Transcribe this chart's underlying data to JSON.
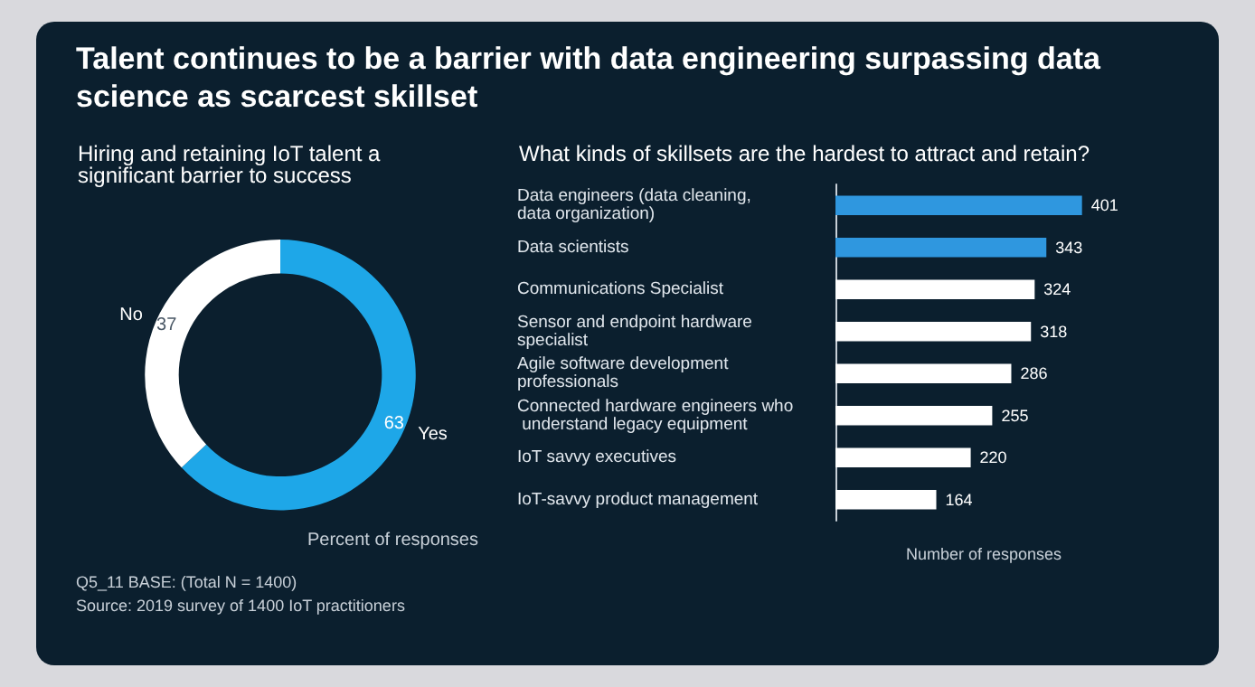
{
  "chart_data": [
    {
      "type": "donut",
      "title": "Talent continues to be a barrier with data engineering surpassing data science as scarcest skillset",
      "subtitle": "Hiring and retaining IoT talent a significant barrier to success",
      "categories": [
        "Yes",
        "No"
      ],
      "values": [
        63,
        37
      ],
      "colors": [
        "#1ea7e8",
        "#ffffff"
      ],
      "xlabel": "Percent of responses",
      "data_labels": true,
      "legend": false,
      "annotations": [
        "Q5_11 BASE: (Total N = 1400)",
        "Source: 2019 survey of 1400 IoT practitioners"
      ]
    },
    {
      "type": "bar",
      "orientation": "horizontal",
      "title": "What kinds of skillsets are the hardest to attract and retain?",
      "categories": [
        "Data engineers (data cleaning, data organization)",
        "Data scientists",
        "Communications Specialist",
        "Sensor and endpoint hardware specialist",
        "Agile software development professionals",
        "Connected hardware engineers who understand legacy equipment",
        "IoT savvy executives",
        "IoT-savvy product management"
      ],
      "values": [
        401,
        343,
        324,
        318,
        286,
        255,
        220,
        164
      ],
      "colors": [
        "#2f97df",
        "#2f97df",
        "#ffffff",
        "#ffffff",
        "#ffffff",
        "#ffffff",
        "#ffffff",
        "#ffffff"
      ],
      "xlabel": "Number of responses",
      "data_labels": true,
      "legend": false,
      "grid": false
    }
  ]
}
